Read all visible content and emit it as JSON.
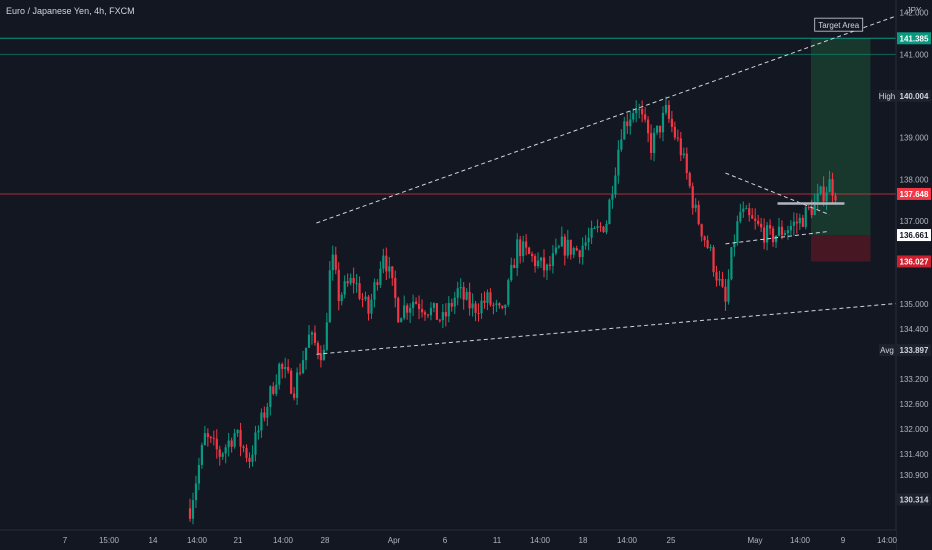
{
  "symbol": {
    "title": "Euro / Japanese Yen, 4h, FXCM"
  },
  "price_axis": {
    "currency": "JPY",
    "ticks": [
      "142.000",
      "141.000",
      "139.000",
      "138.000",
      "137.000",
      "135.000",
      "134.400",
      "133.200",
      "132.600",
      "132.000",
      "131.400",
      "130.900"
    ],
    "tags": [
      {
        "label": "",
        "value": "141.385",
        "color": "#089981",
        "text_color": "#ffffff"
      },
      {
        "label": "High",
        "value": "140.004",
        "color": "#1e222d",
        "text_color": "#d1d4dc"
      },
      {
        "label": "",
        "value": "137.648",
        "color": "#f23645",
        "text_color": "#ffffff"
      },
      {
        "label": "",
        "value": "136.661",
        "color": "#ffffff",
        "text_color": "#131722"
      },
      {
        "label": "",
        "value": "136.027",
        "color": "#cc1f2f",
        "text_color": "#ffffff"
      },
      {
        "label": "Avg",
        "value": "133.897",
        "color": "#1e222d",
        "text_color": "#d1d4dc"
      },
      {
        "label": "",
        "value": "130.314",
        "color": "#1e222d",
        "text_color": "#d1d4dc"
      }
    ]
  },
  "time_axis": {
    "ticks": [
      "7",
      "15:00",
      "14",
      "14:00",
      "21",
      "14:00",
      "28",
      "Apr",
      "6",
      "11",
      "14:00",
      "18",
      "14:00",
      "25",
      "May",
      "14:00",
      "9",
      "14:00"
    ]
  },
  "annotation": {
    "target_label": "Target Area"
  },
  "chart_data": {
    "type": "candlestick",
    "title": "Euro / Japanese Yen, 4h, FXCM",
    "y_unit": "JPY",
    "ylim": [
      130.0,
      142.6
    ],
    "grid": false,
    "levels": {
      "target": 141.385,
      "high": 140.004,
      "last": 137.648,
      "entry": 136.661,
      "stop": 136.027,
      "avg": 133.897,
      "low": 130.314
    },
    "price_path": [
      [
        0,
        130.1
      ],
      [
        2,
        131.8
      ],
      [
        4,
        131.4
      ],
      [
        6,
        131.9
      ],
      [
        8,
        131.3
      ],
      [
        10,
        132.4
      ],
      [
        12,
        133.5
      ],
      [
        14,
        133.0
      ],
      [
        16,
        134.2
      ],
      [
        18,
        133.8
      ],
      [
        19,
        136.2
      ],
      [
        20,
        135.2
      ],
      [
        22,
        135.6
      ],
      [
        24,
        134.8
      ],
      [
        26,
        136.3
      ],
      [
        28,
        134.8
      ],
      [
        30,
        135.1
      ],
      [
        32,
        134.9
      ],
      [
        34,
        134.6
      ],
      [
        36,
        135.3
      ],
      [
        38,
        134.9
      ],
      [
        40,
        135.1
      ],
      [
        42,
        134.7
      ],
      [
        44,
        136.4
      ],
      [
        46,
        136.1
      ],
      [
        48,
        135.8
      ],
      [
        50,
        136.4
      ],
      [
        52,
        136.3
      ],
      [
        54,
        136.6
      ],
      [
        56,
        137.0
      ],
      [
        58,
        139.2
      ],
      [
        60,
        139.8
      ],
      [
        62,
        138.8
      ],
      [
        64,
        139.6
      ],
      [
        66,
        138.7
      ],
      [
        68,
        137.2
      ],
      [
        70,
        136.2
      ],
      [
        71,
        135.6
      ],
      [
        72,
        135.0
      ],
      [
        73,
        136.4
      ],
      [
        74,
        137.2
      ],
      [
        76,
        136.9
      ],
      [
        78,
        136.6
      ],
      [
        80,
        136.8
      ],
      [
        82,
        137.0
      ],
      [
        84,
        137.4
      ],
      [
        86,
        137.9
      ],
      [
        87,
        137.648
      ]
    ],
    "trendlines": [
      {
        "type": "upper-channel",
        "from": [
          17,
          136.95
        ],
        "to": [
          97,
          142.05
        ]
      },
      {
        "type": "lower-channel",
        "from": [
          17,
          133.8
        ],
        "to": [
          97,
          135.05
        ]
      },
      {
        "type": "wedge-top",
        "from": [
          72,
          138.15
        ],
        "to": [
          86,
          137.15
        ]
      },
      {
        "type": "wedge-bottom",
        "from": [
          72,
          136.45
        ],
        "to": [
          86,
          136.75
        ]
      }
    ],
    "breakout_level": {
      "from": [
        79,
        137.42
      ],
      "to": [
        88,
        137.42
      ]
    },
    "long_position": {
      "entry": 136.661,
      "target": 141.385,
      "stop": 136.027,
      "x_start": 83.5,
      "x_end": 91.5
    },
    "target_label": "Target Area"
  }
}
